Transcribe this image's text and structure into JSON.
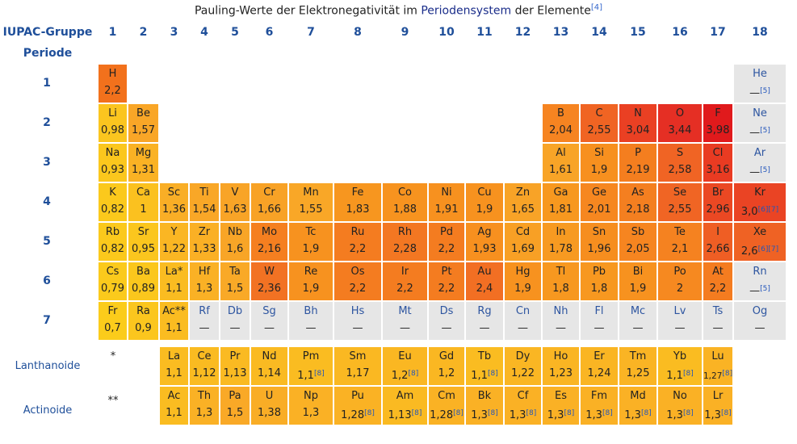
{
  "title": {
    "part1": "Pauling-Werte der Elektronegativität im ",
    "link": "Periodensystem",
    "part2": " der Elemente",
    "ref": "[4]"
  },
  "group_label": "IUPAC-Gruppe",
  "period_label": "Periode",
  "groups": [
    "1",
    "2",
    "3",
    "4",
    "5",
    "6",
    "7",
    "8",
    "9",
    "10",
    "11",
    "12",
    "13",
    "14",
    "15",
    "16",
    "17",
    "18"
  ],
  "periods": [
    "1",
    "2",
    "3",
    "4",
    "5",
    "6",
    "7"
  ],
  "series": {
    "lanthanoid_label": "Lanthanoide",
    "lanthanoid_marker": "*",
    "actinoid_label": "Actinoide",
    "actinoid_marker": "**"
  },
  "elements": [
    {
      "sym": "H",
      "val": "2,2",
      "p": 1,
      "g": 1,
      "color": "#f2711c"
    },
    {
      "sym": "He",
      "val": "—",
      "ref": "[5]",
      "p": 1,
      "g": 18,
      "color": "#e6e6e6"
    },
    {
      "sym": "Li",
      "val": "0,98",
      "p": 2,
      "g": 1,
      "color": "#fbc51f"
    },
    {
      "sym": "Be",
      "val": "1,57",
      "p": 2,
      "g": 2,
      "color": "#f9a627"
    },
    {
      "sym": "B",
      "val": "2,04",
      "p": 2,
      "g": 13,
      "color": "#f68421"
    },
    {
      "sym": "C",
      "val": "2,55",
      "p": 2,
      "g": 14,
      "color": "#f06423"
    },
    {
      "sym": "N",
      "val": "3,04",
      "p": 2,
      "g": 15,
      "color": "#ea4023"
    },
    {
      "sym": "O",
      "val": "3,44",
      "p": 2,
      "g": 16,
      "color": "#e52f24"
    },
    {
      "sym": "F",
      "val": "3,98",
      "p": 2,
      "g": 17,
      "color": "#e01a1c"
    },
    {
      "sym": "Ne",
      "val": "—",
      "ref": "[5]",
      "p": 2,
      "g": 18,
      "color": "#e6e6e6"
    },
    {
      "sym": "Na",
      "val": "0,93",
      "p": 3,
      "g": 1,
      "color": "#fbc71d"
    },
    {
      "sym": "Mg",
      "val": "1,31",
      "p": 3,
      "g": 2,
      "color": "#fab224"
    },
    {
      "sym": "Al",
      "val": "1,61",
      "p": 3,
      "g": 13,
      "color": "#f8a427"
    },
    {
      "sym": "Si",
      "val": "1,9",
      "p": 3,
      "g": 14,
      "color": "#f7901f"
    },
    {
      "sym": "P",
      "val": "2,19",
      "p": 3,
      "g": 15,
      "color": "#f47e1f"
    },
    {
      "sym": "S",
      "val": "2,58",
      "p": 3,
      "g": 16,
      "color": "#f06424"
    },
    {
      "sym": "Cl",
      "val": "3,16",
      "p": 3,
      "g": 17,
      "color": "#e93b22"
    },
    {
      "sym": "Ar",
      "val": "—",
      "ref": "[5]",
      "p": 3,
      "g": 18,
      "color": "#e6e6e6"
    },
    {
      "sym": "K",
      "val": "0,82",
      "p": 4,
      "g": 1,
      "color": "#fbc91c"
    },
    {
      "sym": "Ca",
      "val": "1",
      "p": 4,
      "g": 2,
      "color": "#fbc11f"
    },
    {
      "sym": "Sc",
      "val": "1,36",
      "p": 4,
      "g": 3,
      "color": "#f9ae26"
    },
    {
      "sym": "Ti",
      "val": "1,54",
      "p": 4,
      "g": 4,
      "color": "#f9a727"
    },
    {
      "sym": "V",
      "val": "1,63",
      "p": 4,
      "g": 5,
      "color": "#f8a427"
    },
    {
      "sym": "Cr",
      "val": "1,66",
      "p": 4,
      "g": 6,
      "color": "#f8a226"
    },
    {
      "sym": "Mn",
      "val": "1,55",
      "p": 4,
      "g": 7,
      "color": "#f9a727"
    },
    {
      "sym": "Fe",
      "val": "1,83",
      "p": 4,
      "g": 8,
      "color": "#f7961f"
    },
    {
      "sym": "Co",
      "val": "1,88",
      "p": 4,
      "g": 9,
      "color": "#f7931f"
    },
    {
      "sym": "Ni",
      "val": "1,91",
      "p": 4,
      "g": 10,
      "color": "#f7911f"
    },
    {
      "sym": "Cu",
      "val": "1,9",
      "p": 4,
      "g": 11,
      "color": "#f7921f"
    },
    {
      "sym": "Zn",
      "val": "1,65",
      "p": 4,
      "g": 12,
      "color": "#f8a327"
    },
    {
      "sym": "Ga",
      "val": "1,81",
      "p": 4,
      "g": 13,
      "color": "#f7981f"
    },
    {
      "sym": "Ge",
      "val": "2,01",
      "p": 4,
      "g": 14,
      "color": "#f68720"
    },
    {
      "sym": "As",
      "val": "2,18",
      "p": 4,
      "g": 15,
      "color": "#f47f20"
    },
    {
      "sym": "Se",
      "val": "2,55",
      "p": 4,
      "g": 16,
      "color": "#f06524"
    },
    {
      "sym": "Br",
      "val": "2,96",
      "p": 4,
      "g": 17,
      "color": "#eb4823"
    },
    {
      "sym": "Kr",
      "val": "3,0",
      "ref": "[6][7]",
      "p": 4,
      "g": 18,
      "color": "#ea4424"
    },
    {
      "sym": "Rb",
      "val": "0,82",
      "p": 5,
      "g": 1,
      "color": "#fbc91c"
    },
    {
      "sym": "Sr",
      "val": "0,95",
      "p": 5,
      "g": 2,
      "color": "#fbc61e"
    },
    {
      "sym": "Y",
      "val": "1,22",
      "p": 5,
      "g": 3,
      "color": "#fab623"
    },
    {
      "sym": "Zr",
      "val": "1,33",
      "p": 5,
      "g": 4,
      "color": "#fab025"
    },
    {
      "sym": "Nb",
      "val": "1,6",
      "p": 5,
      "g": 5,
      "color": "#f8a527"
    },
    {
      "sym": "Mo",
      "val": "2,16",
      "p": 5,
      "g": 6,
      "color": "#f57f20"
    },
    {
      "sym": "Tc",
      "val": "1,9",
      "p": 5,
      "g": 7,
      "color": "#f7921f"
    },
    {
      "sym": "Ru",
      "val": "2,2",
      "p": 5,
      "g": 8,
      "color": "#f47c20"
    },
    {
      "sym": "Rh",
      "val": "2,28",
      "p": 5,
      "g": 9,
      "color": "#f37722"
    },
    {
      "sym": "Pd",
      "val": "2,2",
      "p": 5,
      "g": 10,
      "color": "#f47c20"
    },
    {
      "sym": "Ag",
      "val": "1,93",
      "p": 5,
      "g": 11,
      "color": "#f7901f"
    },
    {
      "sym": "Cd",
      "val": "1,69",
      "p": 5,
      "g": 12,
      "color": "#f8a025"
    },
    {
      "sym": "In",
      "val": "1,78",
      "p": 5,
      "g": 13,
      "color": "#f79a21"
    },
    {
      "sym": "Sn",
      "val": "1,96",
      "p": 5,
      "g": 14,
      "color": "#f68e1f"
    },
    {
      "sym": "Sb",
      "val": "2,05",
      "p": 5,
      "g": 15,
      "color": "#f68520"
    },
    {
      "sym": "Te",
      "val": "2,1",
      "p": 5,
      "g": 16,
      "color": "#f58220"
    },
    {
      "sym": "I",
      "val": "2,66",
      "p": 5,
      "g": 17,
      "color": "#ef5e24"
    },
    {
      "sym": "Xe",
      "val": "2,6",
      "ref": "[6][7]",
      "p": 5,
      "g": 18,
      "color": "#ef6224"
    },
    {
      "sym": "Cs",
      "val": "0,79",
      "p": 6,
      "g": 1,
      "color": "#fbca1c"
    },
    {
      "sym": "Ba",
      "val": "0,89",
      "p": 6,
      "g": 2,
      "color": "#fbc71d"
    },
    {
      "sym": "La*",
      "val": "1,1",
      "p": 6,
      "g": 3,
      "color": "#fabc21"
    },
    {
      "sym": "Hf",
      "val": "1,3",
      "p": 6,
      "g": 4,
      "color": "#fab125"
    },
    {
      "sym": "Ta",
      "val": "1,5",
      "p": 6,
      "g": 5,
      "color": "#f9a927"
    },
    {
      "sym": "W",
      "val": "2,36",
      "p": 6,
      "g": 6,
      "color": "#f27223"
    },
    {
      "sym": "Re",
      "val": "1,9",
      "p": 6,
      "g": 7,
      "color": "#f7921f"
    },
    {
      "sym": "Os",
      "val": "2,2",
      "p": 6,
      "g": 8,
      "color": "#f47c20"
    },
    {
      "sym": "Ir",
      "val": "2,2",
      "p": 6,
      "g": 9,
      "color": "#f47c20"
    },
    {
      "sym": "Pt",
      "val": "2,2",
      "p": 6,
      "g": 10,
      "color": "#f47c20"
    },
    {
      "sym": "Au",
      "val": "2,4",
      "p": 6,
      "g": 11,
      "color": "#f26f23"
    },
    {
      "sym": "Hg",
      "val": "1,9",
      "p": 6,
      "g": 12,
      "color": "#f7921f"
    },
    {
      "sym": "Tl",
      "val": "1,8",
      "p": 6,
      "g": 13,
      "color": "#f79820"
    },
    {
      "sym": "Pb",
      "val": "1,8",
      "p": 6,
      "g": 14,
      "color": "#f79820"
    },
    {
      "sym": "Bi",
      "val": "1,9",
      "p": 6,
      "g": 15,
      "color": "#f7921f"
    },
    {
      "sym": "Po",
      "val": "2",
      "p": 6,
      "g": 16,
      "color": "#f68920"
    },
    {
      "sym": "At",
      "val": "2,2",
      "p": 6,
      "g": 17,
      "color": "#f47c20"
    },
    {
      "sym": "Rn",
      "val": "—",
      "ref": "[5]",
      "p": 6,
      "g": 18,
      "color": "#e6e6e6"
    },
    {
      "sym": "Fr",
      "val": "0,7",
      "p": 7,
      "g": 1,
      "color": "#fbcc1b"
    },
    {
      "sym": "Ra",
      "val": "0,9",
      "p": 7,
      "g": 2,
      "color": "#fbc61e"
    },
    {
      "sym": "Ac**",
      "val": "1,1",
      "p": 7,
      "g": 3,
      "color": "#fabc21"
    },
    {
      "sym": "Rf",
      "val": "—",
      "p": 7,
      "g": 4,
      "color": "#e6e6e6"
    },
    {
      "sym": "Db",
      "val": "—",
      "p": 7,
      "g": 5,
      "color": "#e6e6e6"
    },
    {
      "sym": "Sg",
      "val": "—",
      "p": 7,
      "g": 6,
      "color": "#e6e6e6"
    },
    {
      "sym": "Bh",
      "val": "—",
      "p": 7,
      "g": 7,
      "color": "#e6e6e6"
    },
    {
      "sym": "Hs",
      "val": "—",
      "p": 7,
      "g": 8,
      "color": "#e6e6e6"
    },
    {
      "sym": "Mt",
      "val": "—",
      "p": 7,
      "g": 9,
      "color": "#e6e6e6"
    },
    {
      "sym": "Ds",
      "val": "—",
      "p": 7,
      "g": 10,
      "color": "#e6e6e6"
    },
    {
      "sym": "Rg",
      "val": "—",
      "p": 7,
      "g": 11,
      "color": "#e6e6e6"
    },
    {
      "sym": "Cn",
      "val": "—",
      "p": 7,
      "g": 12,
      "color": "#e6e6e6"
    },
    {
      "sym": "Nh",
      "val": "—",
      "p": 7,
      "g": 13,
      "color": "#e6e6e6"
    },
    {
      "sym": "Fl",
      "val": "—",
      "p": 7,
      "g": 14,
      "color": "#e6e6e6"
    },
    {
      "sym": "Mc",
      "val": "—",
      "p": 7,
      "g": 15,
      "color": "#e6e6e6"
    },
    {
      "sym": "Lv",
      "val": "—",
      "p": 7,
      "g": 16,
      "color": "#e6e6e6"
    },
    {
      "sym": "Ts",
      "val": "—",
      "p": 7,
      "g": 17,
      "color": "#e6e6e6"
    },
    {
      "sym": "Og",
      "val": "—",
      "p": 7,
      "g": 18,
      "color": "#e6e6e6"
    },
    {
      "sym": "La",
      "val": "1,1",
      "p": "L",
      "g": 3,
      "color": "#fabc21"
    },
    {
      "sym": "Ce",
      "val": "1,12",
      "p": "L",
      "g": 4,
      "color": "#fabb21"
    },
    {
      "sym": "Pr",
      "val": "1,13",
      "p": "L",
      "g": 5,
      "color": "#faba22"
    },
    {
      "sym": "Nd",
      "val": "1,14",
      "p": "L",
      "g": 6,
      "color": "#faba22"
    },
    {
      "sym": "Pm",
      "val": "1,1",
      "ref": "[8]",
      "p": "L",
      "g": 7,
      "color": "#fabc21"
    },
    {
      "sym": "Sm",
      "val": "1,17",
      "p": "L",
      "g": 8,
      "color": "#fab822"
    },
    {
      "sym": "Eu",
      "val": "1,2",
      "ref": "[8]",
      "p": "L",
      "g": 9,
      "color": "#fab722"
    },
    {
      "sym": "Gd",
      "val": "1,2",
      "p": "L",
      "g": 10,
      "color": "#fab722"
    },
    {
      "sym": "Tb",
      "val": "1,1",
      "ref": "[8]",
      "p": "L",
      "g": 11,
      "color": "#fabc21"
    },
    {
      "sym": "Dy",
      "val": "1,22",
      "p": "L",
      "g": 12,
      "color": "#fab623"
    },
    {
      "sym": "Ho",
      "val": "1,23",
      "p": "L",
      "g": 13,
      "color": "#fab523"
    },
    {
      "sym": "Er",
      "val": "1,24",
      "p": "L",
      "g": 14,
      "color": "#fab523"
    },
    {
      "sym": "Tm",
      "val": "1,25",
      "p": "L",
      "g": 15,
      "color": "#fab424"
    },
    {
      "sym": "Yb",
      "val": "1,1",
      "ref": "[8]",
      "p": "L",
      "g": 16,
      "color": "#fabc21"
    },
    {
      "sym": "Lu",
      "val": "1,27",
      "ref": "[8]",
      "p": "L",
      "g": 17,
      "color": "#fab324"
    },
    {
      "sym": "Ac",
      "val": "1,1",
      "p": "A",
      "g": 3,
      "color": "#fabc21"
    },
    {
      "sym": "Th",
      "val": "1,3",
      "p": "A",
      "g": 4,
      "color": "#fab125"
    },
    {
      "sym": "Pa",
      "val": "1,5",
      "p": "A",
      "g": 5,
      "color": "#f9a927"
    },
    {
      "sym": "U",
      "val": "1,38",
      "p": "A",
      "g": 6,
      "color": "#f9ad26"
    },
    {
      "sym": "Np",
      "val": "1,3",
      "p": "A",
      "g": 7,
      "color": "#fab125"
    },
    {
      "sym": "Pu",
      "val": "1,28",
      "ref": "[8]",
      "p": "A",
      "g": 8,
      "color": "#fab224"
    },
    {
      "sym": "Am",
      "val": "1,13",
      "ref": "[8]",
      "p": "A",
      "g": 9,
      "color": "#faba22"
    },
    {
      "sym": "Cm",
      "val": "1,28",
      "ref": "[8]",
      "p": "A",
      "g": 10,
      "color": "#fab224"
    },
    {
      "sym": "Bk",
      "val": "1,3",
      "ref": "[8]",
      "p": "A",
      "g": 11,
      "color": "#fab125"
    },
    {
      "sym": "Cf",
      "val": "1,3",
      "ref": "[8]",
      "p": "A",
      "g": 12,
      "color": "#fab125"
    },
    {
      "sym": "Es",
      "val": "1,3",
      "ref": "[8]",
      "p": "A",
      "g": 13,
      "color": "#fab125"
    },
    {
      "sym": "Fm",
      "val": "1,3",
      "ref": "[8]",
      "p": "A",
      "g": 14,
      "color": "#fab125"
    },
    {
      "sym": "Md",
      "val": "1,3",
      "ref": "[8]",
      "p": "A",
      "g": 15,
      "color": "#fab125"
    },
    {
      "sym": "No",
      "val": "1,3",
      "ref": "[8]",
      "p": "A",
      "g": 16,
      "color": "#fab125"
    },
    {
      "sym": "Lr",
      "val": "1,3",
      "ref": "[8]",
      "p": "A",
      "g": 17,
      "color": "#fab125"
    }
  ]
}
